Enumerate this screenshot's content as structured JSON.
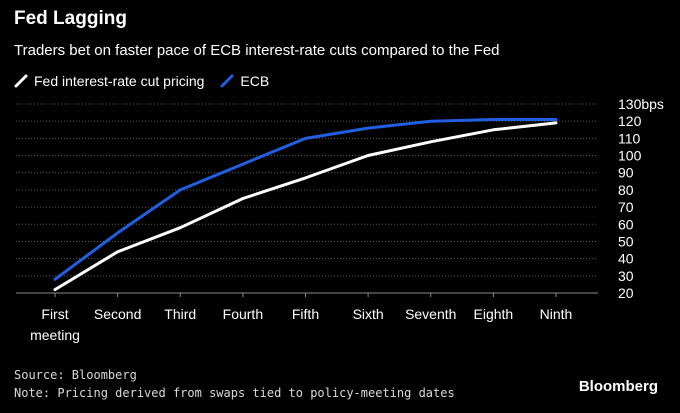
{
  "header": {
    "title": "Fed Lagging",
    "subtitle": "Traders bet on faster pace of ECB interest-rate cuts compared to the Fed"
  },
  "legend": {
    "position": "top-left",
    "items": [
      {
        "label": "Fed interest-rate cut pricing",
        "color": "#ffffff"
      },
      {
        "label": "ECB",
        "color": "#1f5fe0"
      }
    ]
  },
  "chart_data": {
    "type": "line",
    "title": "Fed Lagging",
    "subtitle": "Traders bet on faster pace of ECB interest-rate cuts compared to the Fed",
    "xlabel": "",
    "ylabel": "",
    "categories": [
      "First\nmeeting",
      "Second",
      "Third",
      "Fourth",
      "Fifth",
      "Sixth",
      "Seventh",
      "Eighth",
      "Ninth"
    ],
    "y_ticks": [
      20,
      30,
      40,
      50,
      60,
      70,
      80,
      90,
      100,
      110,
      120,
      130
    ],
    "y_top_label": "130bps",
    "ylim": [
      20,
      130
    ],
    "grid": true,
    "y_axis_position": "right",
    "series": [
      {
        "name": "Fed interest-rate cut pricing",
        "color": "#ffffff",
        "values": [
          22,
          44,
          58,
          75,
          87,
          100,
          108,
          115,
          119
        ]
      },
      {
        "name": "ECB",
        "color": "#1f5fe0",
        "values": [
          28,
          55,
          80,
          95,
          110,
          116,
          120,
          121,
          121
        ]
      }
    ]
  },
  "footer": {
    "source": "Source: Bloomberg",
    "note": "Note: Pricing derived from swaps tied to policy-meeting dates",
    "brand": "Bloomberg"
  }
}
